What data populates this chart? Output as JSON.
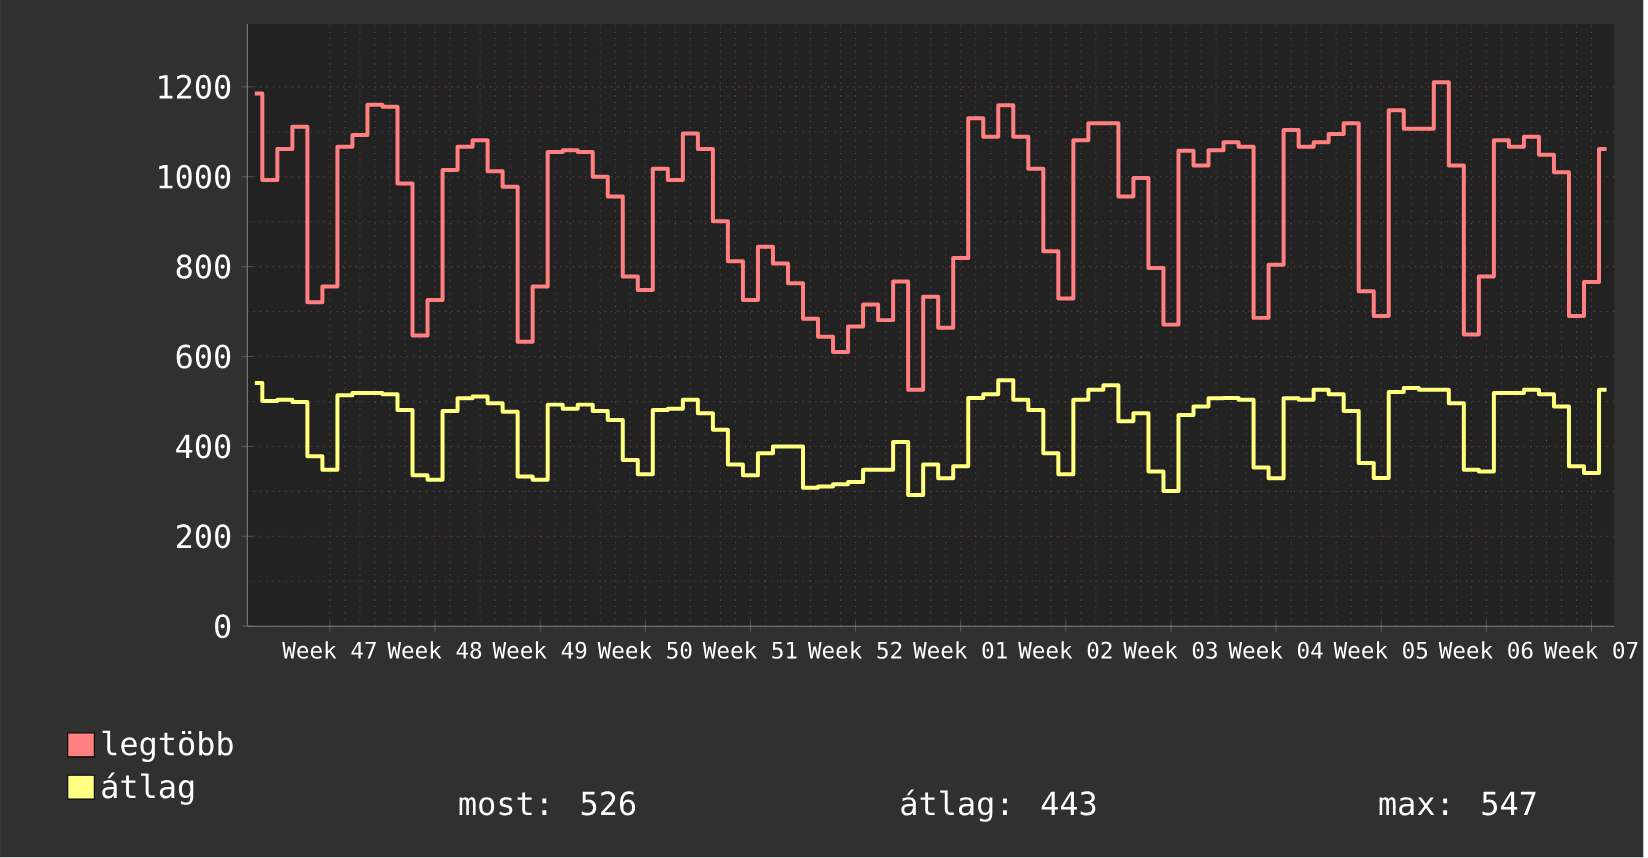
{
  "chart_data": {
    "type": "step",
    "categories": [
      null,
      null,
      null,
      null,
      null,
      "Week 47",
      null,
      null,
      null,
      null,
      null,
      null,
      "Week 48",
      null,
      null,
      null,
      null,
      null,
      null,
      "Week 49",
      null,
      null,
      null,
      null,
      null,
      null,
      "Week 50",
      null,
      null,
      null,
      null,
      null,
      null,
      "Week 51",
      null,
      null,
      null,
      null,
      null,
      null,
      "Week 52",
      null,
      null,
      null,
      null,
      null,
      null,
      "Week 01",
      null,
      null,
      null,
      null,
      null,
      null,
      "Week 02",
      null,
      null,
      null,
      null,
      null,
      null,
      "Week 03",
      null,
      null,
      null,
      null,
      null,
      null,
      "Week 04",
      null,
      null,
      null,
      null,
      null,
      null,
      "Week 05",
      null,
      null,
      null,
      null,
      null,
      null,
      "Week 06",
      null,
      null,
      null,
      null,
      null,
      null,
      "Week 07",
      null
    ],
    "series": [
      {
        "name": "legtöbb",
        "color": "#ff8080",
        "values": [
          1185,
          993,
          1062,
          1111,
          721,
          756,
          1067,
          1093,
          1160,
          1156,
          985,
          647,
          726,
          1015,
          1067,
          1081,
          1012,
          978,
          633,
          756,
          1055,
          1059,
          1055,
          1000,
          956,
          778,
          748,
          1018,
          993,
          1096,
          1062,
          901,
          812,
          726,
          844,
          807,
          763,
          684,
          644,
          610,
          667,
          716,
          681,
          767,
          526,
          733,
          664,
          819,
          1130,
          1089,
          1159,
          1089,
          1018,
          834,
          729,
          1081,
          1119,
          1119,
          956,
          997,
          797,
          671,
          1058,
          1025,
          1059,
          1077,
          1067,
          686,
          804,
          1104,
          1067,
          1077,
          1095,
          1119,
          745,
          690,
          1148,
          1107,
          1107,
          1210,
          1025,
          649,
          778,
          1081,
          1067,
          1089,
          1049,
          1010,
          690,
          766,
          1062
        ]
      },
      {
        "name": "átlag",
        "color": "#ffff80",
        "values": [
          541,
          501,
          504,
          499,
          378,
          348,
          514,
          519,
          519,
          516,
          481,
          336,
          326,
          479,
          507,
          511,
          496,
          477,
          333,
          326,
          493,
          484,
          493,
          479,
          459,
          370,
          338,
          481,
          484,
          504,
          474,
          437,
          360,
          336,
          385,
          400,
          400,
          308,
          311,
          316,
          321,
          348,
          348,
          410,
          292,
          360,
          329,
          356,
          508,
          516,
          547,
          504,
          481,
          385,
          338,
          504,
          526,
          536,
          456,
          474,
          344,
          301,
          470,
          489,
          507,
          508,
          504,
          353,
          329,
          507,
          504,
          526,
          516,
          479,
          363,
          330,
          521,
          530,
          526,
          526,
          496,
          348,
          344,
          519,
          519,
          526,
          516,
          489,
          356,
          341,
          526
        ]
      }
    ],
    "ylim": [
      0,
      1340
    ],
    "yticks": [
      0,
      200,
      400,
      600,
      800,
      1000,
      1200
    ],
    "grid": true,
    "legend": "bottom",
    "annotations": [
      "most: 526",
      "átlag: 443",
      "max: 547"
    ]
  }
}
